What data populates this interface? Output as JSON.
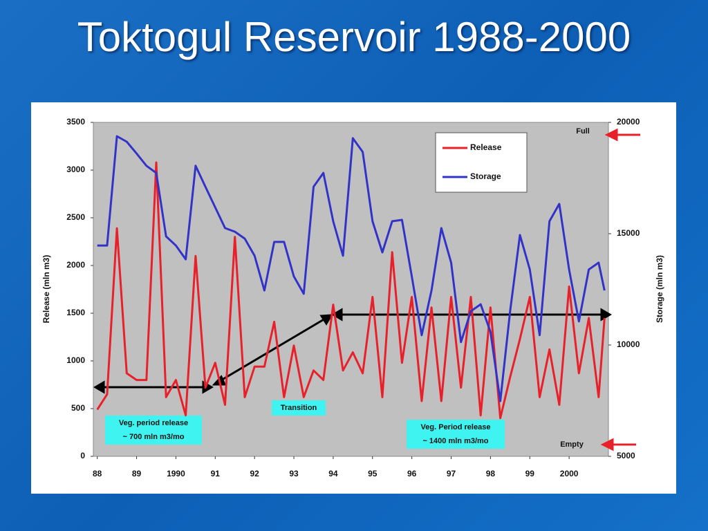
{
  "chart_data": {
    "type": "line",
    "title": "Toktogul Reservoir 1988-2000",
    "y_label": "Release (mln m3)",
    "y2_label": "Storage (mln m3)",
    "xlim": [
      1987.9,
      2001
    ],
    "xticks": [
      {
        "value": 1988,
        "label": "88"
      },
      {
        "value": 1989,
        "label": "89"
      },
      1990,
      {
        "value": 1991,
        "label": "91"
      },
      {
        "value": 1992,
        "label": "92"
      },
      {
        "value": 1993,
        "label": "93"
      },
      {
        "value": 1994,
        "label": "94"
      },
      {
        "value": 1995,
        "label": "95"
      },
      {
        "value": 1996,
        "label": "96"
      },
      {
        "value": 1997,
        "label": "97"
      },
      {
        "value": 1998,
        "label": "98"
      },
      {
        "value": 1999,
        "label": "99"
      },
      2000
    ],
    "ylim": [
      0,
      3500
    ],
    "yticks": [
      0,
      500,
      1000,
      1500,
      2000,
      2500,
      3000,
      3500
    ],
    "y2lim": [
      5000,
      20000
    ],
    "y2ticks": [
      5000,
      10000,
      15000,
      20000
    ],
    "legend": "upper right",
    "x": [
      1988,
      1988.25,
      1988.5,
      1988.75,
      1989,
      1989.25,
      1989.5,
      1989.75,
      1990,
      1990.25,
      1990.5,
      1990.75,
      1991,
      1991.25,
      1991.5,
      1991.75,
      1992,
      1992.25,
      1992.5,
      1992.75,
      1993,
      1993.25,
      1993.5,
      1993.75,
      1994,
      1994.25,
      1994.5,
      1994.75,
      1995,
      1995.25,
      1995.5,
      1995.75,
      1996,
      1996.25,
      1996.5,
      1996.75,
      1997,
      1997.25,
      1997.5,
      1997.75,
      1998,
      1998.25,
      1998.5,
      1998.75,
      1999,
      1999.25,
      1999.5,
      1999.75,
      2000,
      2000.25,
      2000.5,
      2000.75,
      2000.9
    ],
    "series": [
      {
        "name": "Release",
        "color": "#e8202a",
        "values": [
          490,
          650,
          2390,
          870,
          800,
          800,
          3080,
          620,
          800,
          430,
          2100,
          720,
          980,
          540,
          2300,
          620,
          940,
          940,
          1410,
          620,
          1160,
          620,
          900,
          800,
          1590,
          900,
          1090,
          870,
          1670,
          620,
          2140,
          980,
          1670,
          580,
          1560,
          580,
          1670,
          720,
          1670,
          430,
          1560,
          400,
          830,
          1230,
          1670,
          620,
          1120,
          540,
          1780,
          870,
          1450,
          620,
          1450
        ]
      },
      {
        "name": "Storage",
        "color": "#3232c8",
        "axis": "y2",
        "values": [
          14470,
          14470,
          19380,
          19130,
          18600,
          18050,
          17730,
          14880,
          14470,
          13850,
          18050,
          17110,
          16180,
          15250,
          15090,
          14780,
          14010,
          12450,
          14630,
          14630,
          13080,
          12300,
          17110,
          17730,
          15560,
          14010,
          19290,
          18670,
          15560,
          14160,
          15560,
          15620,
          13080,
          10440,
          12450,
          15250,
          13700,
          10130,
          11520,
          11830,
          10590,
          7480,
          11520,
          14940,
          13390,
          10440,
          15560,
          16340,
          13390,
          11060,
          13390,
          13700,
          12450
        ]
      }
    ],
    "annotations": [
      "Full",
      "Empty",
      "Transition",
      "Veg. period release",
      "~ 700 mln m3/mo",
      "Veg. Period release",
      "~ 1400 mln m3/mo"
    ]
  }
}
